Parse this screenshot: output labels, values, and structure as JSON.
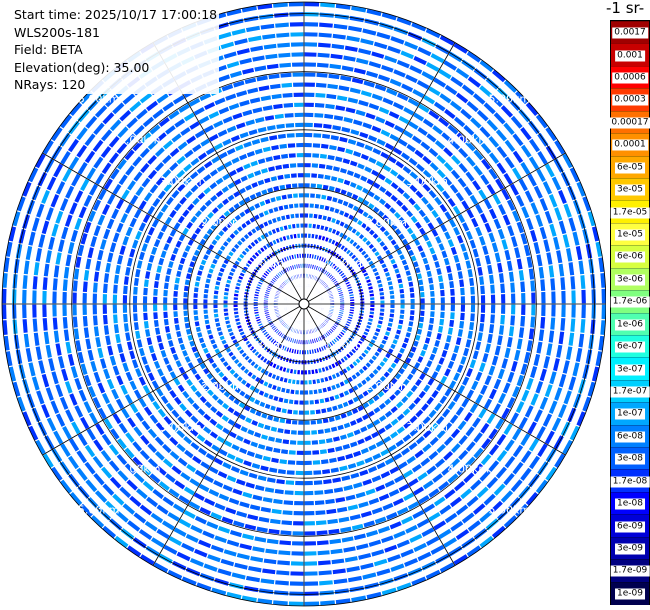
{
  "info": {
    "start_time": "Start time: 2025/10/17 17:00:18",
    "instrument": "WLS200s-181",
    "field": "Field: BETA",
    "elevation": "Elevation(deg): 35.00",
    "nrays": "NRays: 120"
  },
  "chart_data": {
    "type": "heatmap",
    "projection": "polar-ppi",
    "field": "BETA",
    "elevation_deg": 35.0,
    "n_rays": 120,
    "max_range_km": 5.2,
    "range_ring_labels": [
      "1.00km",
      "2.00km",
      "3.00km",
      "4.00km",
      "5.00km"
    ],
    "range_rings_km": [
      1,
      2,
      3,
      4,
      5
    ],
    "typical_value_far": 1e-08,
    "typical_value_near": 3e-09,
    "colorbar": {
      "title": "-1 sr-",
      "ticks": [
        "0.0017",
        "0.001",
        "0.0006",
        "0.0003",
        "0.00017",
        "0.0001",
        "6e-05",
        "3e-05",
        "1.7e-05",
        "1e-05",
        "6e-06",
        "3e-06",
        "1.7e-06",
        "1e-06",
        "6e-07",
        "3e-07",
        "1.7e-07",
        "1e-07",
        "6e-08",
        "3e-08",
        "1.7e-08",
        "1e-08",
        "6e-09",
        "3e-09",
        "1.7e-09",
        "1e-09"
      ],
      "colors": [
        "#a00000",
        "#c80000",
        "#ff0000",
        "#ff3a00",
        "#ff7000",
        "#ff9000",
        "#ffa800",
        "#ffc800",
        "#fff000",
        "#ffff40",
        "#d8ff40",
        "#b0ff60",
        "#80ff80",
        "#50ffb0",
        "#20ffe0",
        "#00f0ff",
        "#00d0ff",
        "#00a8ff",
        "#0080ff",
        "#0060ff",
        "#0030ff",
        "#0000ff",
        "#0000d8",
        "#0000b0",
        "#000080",
        "#00004f"
      ]
    }
  }
}
